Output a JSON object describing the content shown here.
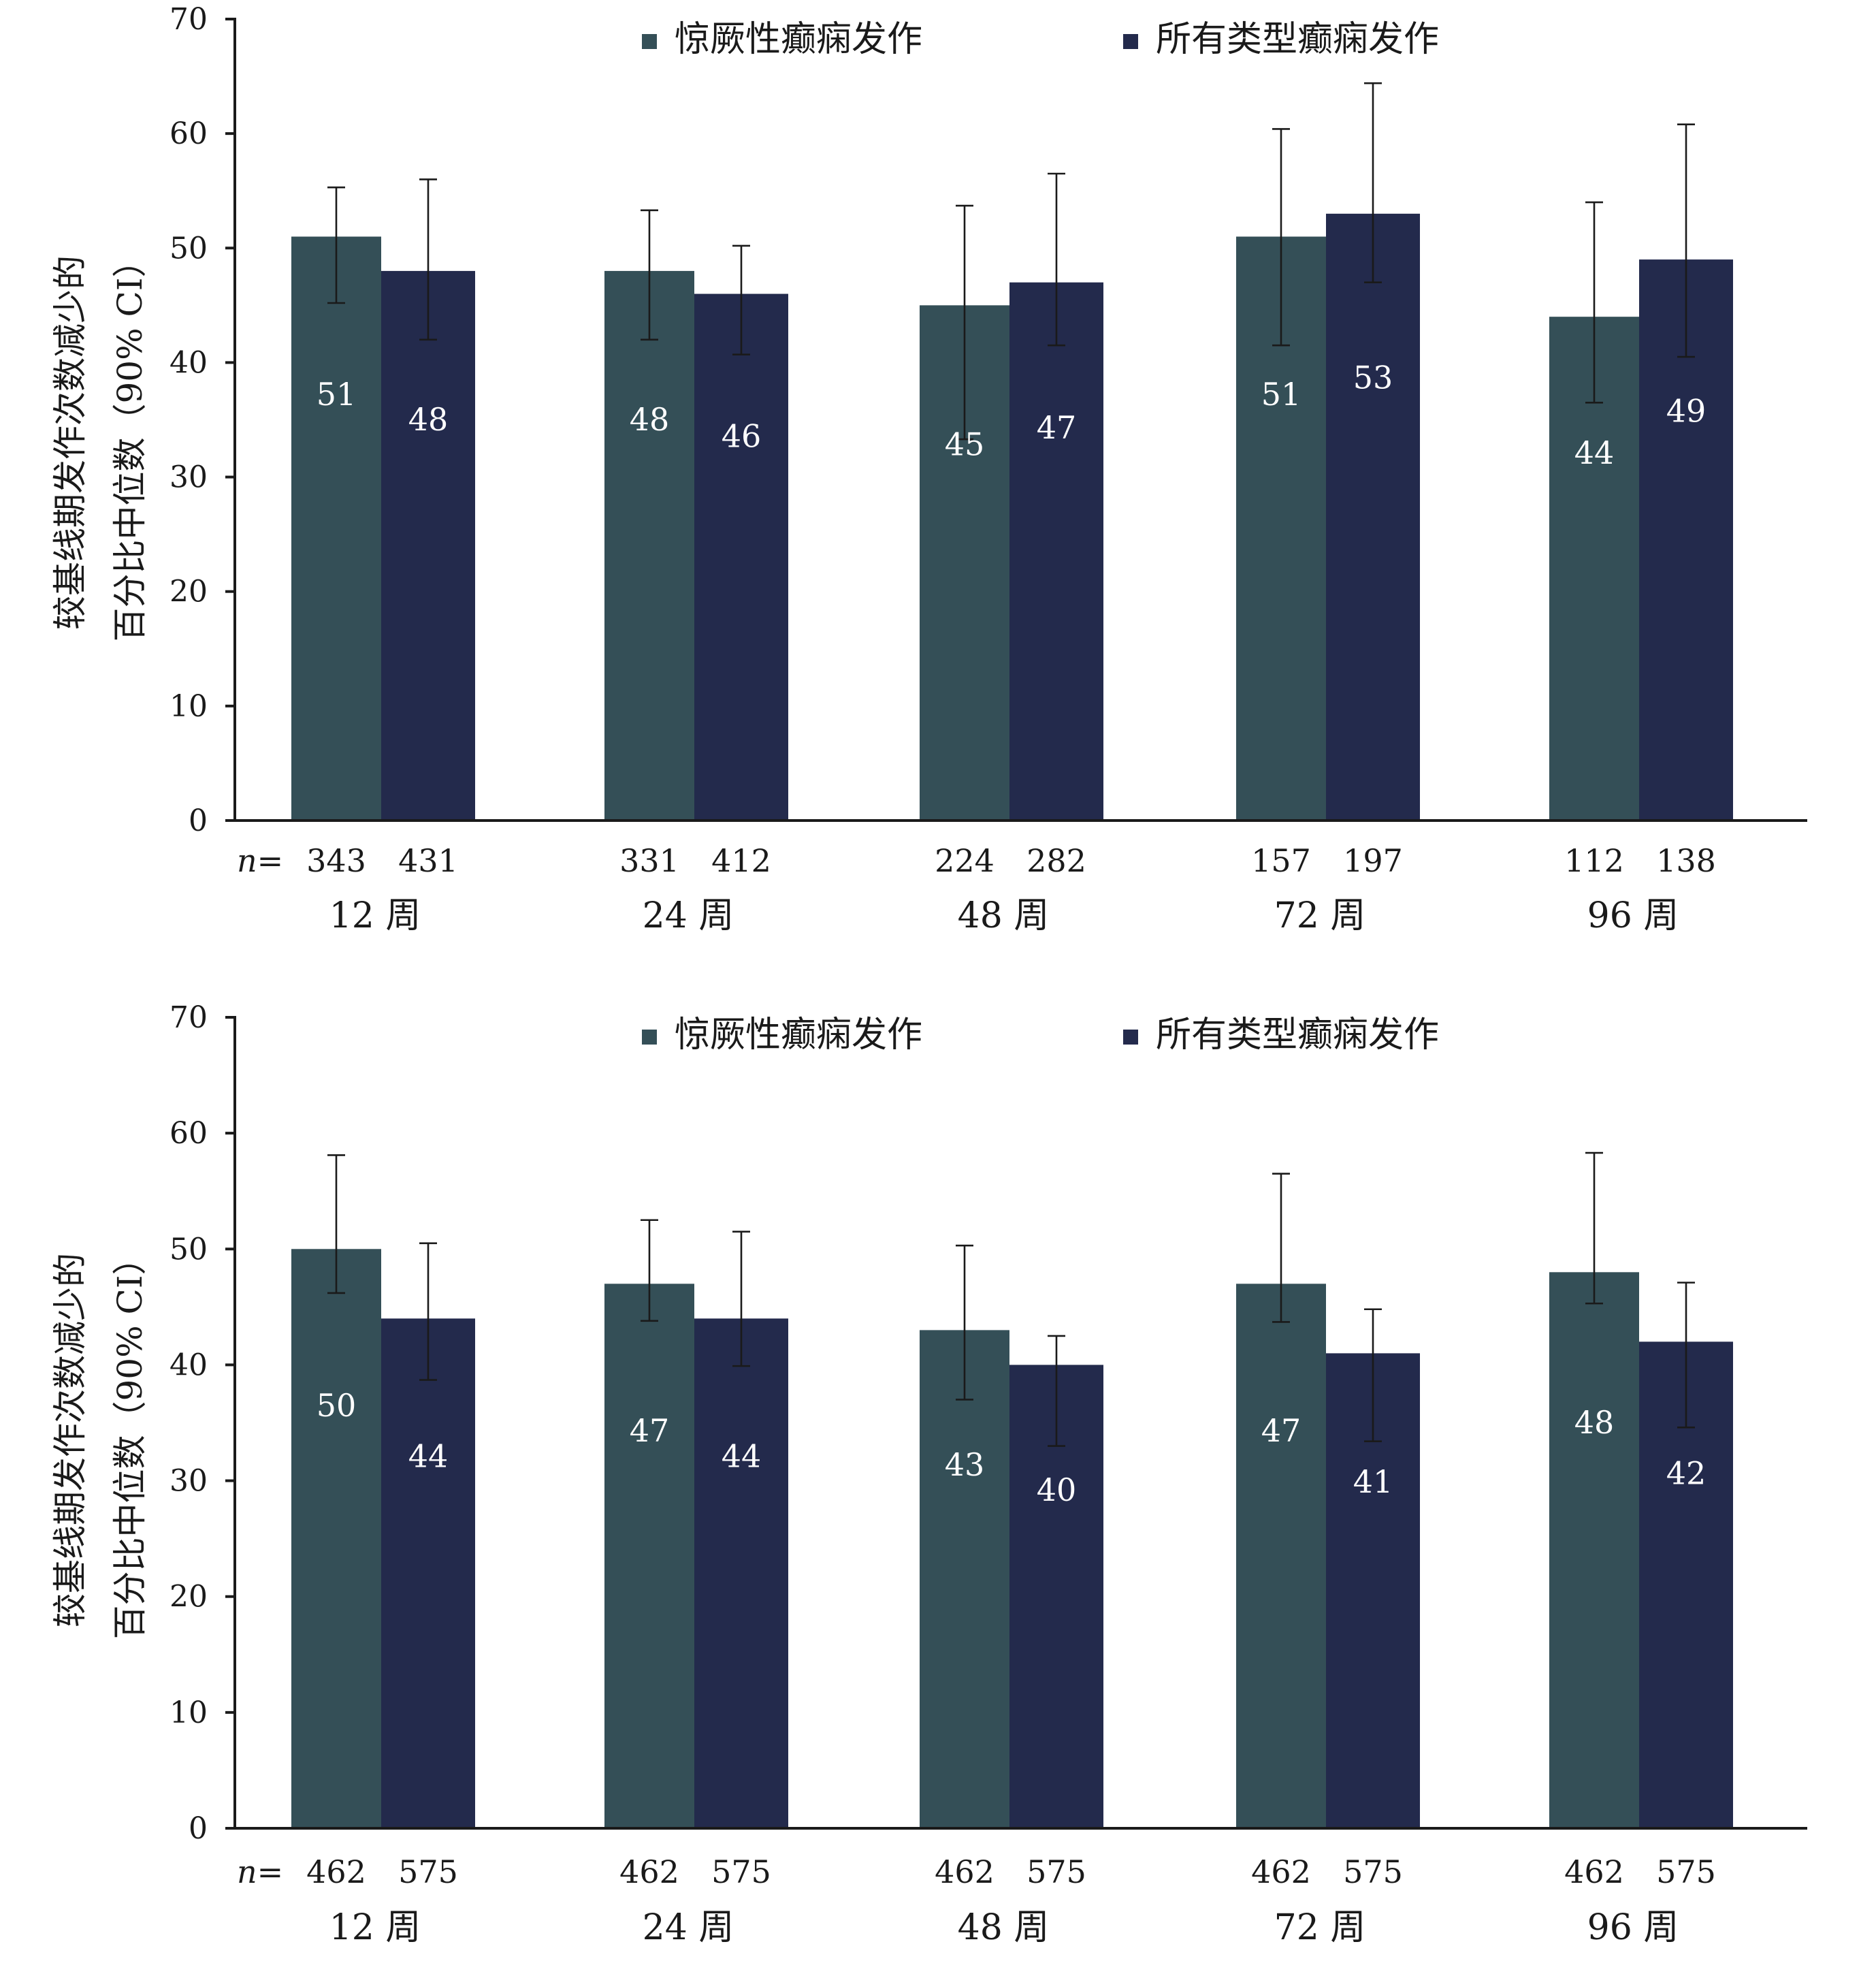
{
  "colors": {
    "series1": "#344f57",
    "series2": "#232a4c",
    "axis": "#1a1a1a",
    "label_text": "#ffffff"
  },
  "legend": {
    "series1": "惊厥性癫痫发作",
    "series2": "所有类型癫痫发作"
  },
  "ylabel_lines": [
    "较基线期发作次数减少的",
    "百分比中位数（90% CI）"
  ],
  "n_prefix": "n=",
  "chart_data": [
    {
      "type": "bar",
      "categories": [
        "12 周",
        "24 周",
        "48 周",
        "72 周",
        "96 周"
      ],
      "ylim": [
        0,
        70
      ],
      "yticks": [
        "0",
        "10",
        "20",
        "30",
        "40",
        "50",
        "60",
        "70"
      ],
      "legend_position": "top",
      "series": [
        {
          "name": "惊厥性癫痫发作",
          "values": [
            51,
            48,
            45,
            51,
            44
          ],
          "ci_low": [
            45.2,
            42,
            33.3,
            41.5,
            36.5
          ],
          "ci_high": [
            55.3,
            53.3,
            53.7,
            60.4,
            54
          ],
          "n": [
            "343",
            "331",
            "224",
            "157",
            "112"
          ],
          "labels": [
            "51",
            "48",
            "45",
            "51",
            "44"
          ]
        },
        {
          "name": "所有类型癫痫发作",
          "values": [
            48,
            46,
            47,
            53,
            49
          ],
          "ci_low": [
            42,
            40.7,
            41.5,
            47,
            40.5
          ],
          "ci_high": [
            56,
            50.2,
            56.5,
            64.4,
            60.8
          ],
          "n": [
            "431",
            "412",
            "282",
            "197",
            "138"
          ],
          "labels": [
            "48",
            "46",
            "47",
            "53",
            "49"
          ]
        }
      ]
    },
    {
      "type": "bar",
      "categories": [
        "12 周",
        "24 周",
        "48 周",
        "72 周",
        "96 周"
      ],
      "ylim": [
        0,
        70
      ],
      "yticks": [
        "0",
        "10",
        "20",
        "30",
        "40",
        "50",
        "60",
        "70"
      ],
      "legend_position": "top",
      "series": [
        {
          "name": "惊厥性癫痫发作",
          "values": [
            50,
            47,
            43,
            47,
            48
          ],
          "ci_low": [
            46.2,
            43.8,
            37,
            43.7,
            45.3
          ],
          "ci_high": [
            58.1,
            52.5,
            50.3,
            56.5,
            58.3
          ],
          "n": [
            "462",
            "462",
            "462",
            "462",
            "462"
          ],
          "labels": [
            "50",
            "47",
            "43",
            "47",
            "48"
          ]
        },
        {
          "name": "所有类型癫痫发作",
          "values": [
            44,
            44,
            40,
            41,
            42
          ],
          "ci_low": [
            38.7,
            39.9,
            33,
            33.4,
            34.6
          ],
          "ci_high": [
            50.5,
            51.5,
            42.5,
            44.8,
            47.1
          ],
          "n": [
            "575",
            "575",
            "575",
            "575",
            "575"
          ],
          "labels": [
            "44",
            "44",
            "40",
            "41",
            "42"
          ]
        }
      ]
    }
  ]
}
